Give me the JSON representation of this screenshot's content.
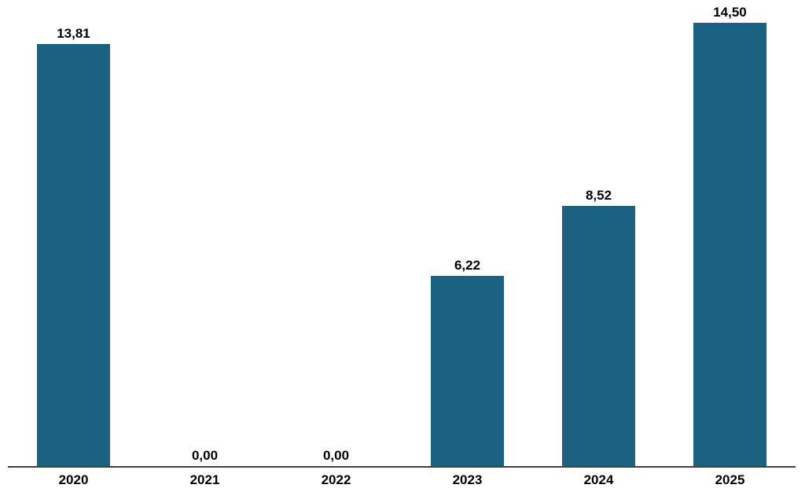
{
  "chart_data": {
    "type": "bar",
    "title": "",
    "xlabel": "",
    "ylabel": "",
    "categories": [
      "2020",
      "2021",
      "2022",
      "2023",
      "2024",
      "2025"
    ],
    "values": [
      13.81,
      0.0,
      0.0,
      6.22,
      8.52,
      14.5
    ],
    "value_labels": [
      "13,81",
      "0,00",
      "0,00",
      "6,22",
      "8,52",
      "14,50"
    ],
    "decimal_separator": ",",
    "ylim": [
      0,
      15.25
    ],
    "grid": "off",
    "legend": "none",
    "bar_color": "#1B6182",
    "axis_color": "#404040",
    "label_color": "#000000",
    "background_color": "#FFFFFF"
  }
}
